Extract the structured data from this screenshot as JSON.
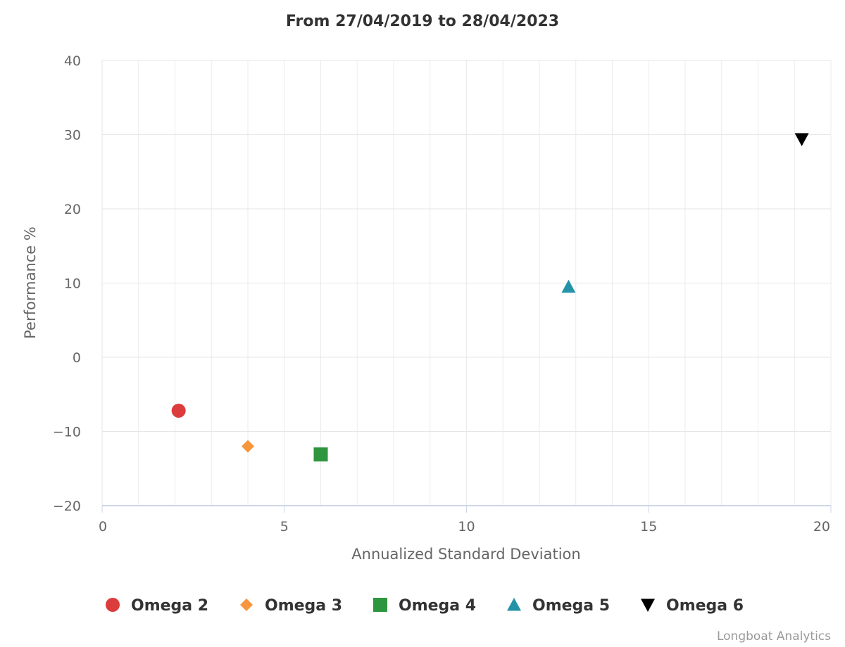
{
  "chart_data": {
    "type": "scatter",
    "title": "From 27/04/2019 to 28/04/2023",
    "xlabel": "Annualized Standard Deviation",
    "ylabel": "Performance %",
    "xlim": [
      0,
      20
    ],
    "ylim": [
      -20,
      40
    ],
    "x_ticks": [
      0,
      5,
      10,
      15,
      20
    ],
    "y_ticks": [
      -20,
      -10,
      0,
      10,
      20,
      30,
      40
    ],
    "x_tick_labels": [
      "0",
      "5",
      "10",
      "15",
      "20"
    ],
    "y_tick_labels": [
      "−20",
      "−10",
      "0",
      "10",
      "20",
      "30",
      "40"
    ],
    "grid": true,
    "legend_position": "bottom",
    "series": [
      {
        "name": "Omega 2",
        "marker": "circle",
        "color": "#dd3c3c",
        "points": [
          [
            2.1,
            -7.2
          ]
        ]
      },
      {
        "name": "Omega 3",
        "marker": "diamond",
        "color": "#f7963d",
        "points": [
          [
            4.0,
            -12.0
          ]
        ]
      },
      {
        "name": "Omega 4",
        "marker": "square",
        "color": "#2e963e",
        "points": [
          [
            6.0,
            -13.1
          ]
        ]
      },
      {
        "name": "Omega 5",
        "marker": "triangle",
        "color": "#2393a8",
        "points": [
          [
            12.8,
            9.5
          ]
        ]
      },
      {
        "name": "Omega 6",
        "marker": "triangle-down",
        "color": "#000000",
        "points": [
          [
            19.2,
            29.4
          ]
        ]
      }
    ]
  },
  "credits": "Longboat Analytics"
}
